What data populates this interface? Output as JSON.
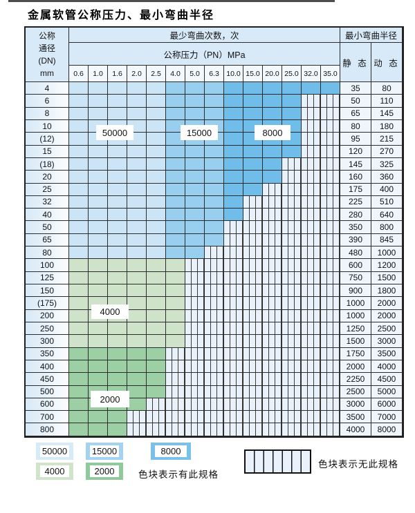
{
  "title": "金属软管公称压力、最小弯曲半径",
  "table": {
    "header": {
      "dn_lines": [
        "公称",
        "通径",
        "(DN)",
        "mm"
      ],
      "bend_cycles": "最少弯曲次数，次",
      "pressure": "公称压力（PN）MPa",
      "radius": "最小弯曲半径",
      "static_label": "静 态",
      "dynamic_label": "动 态",
      "pressures": [
        "0.6",
        "1.0",
        "1.6",
        "2.0",
        "2.5",
        "4.0",
        "5.0",
        "6.3",
        "10.0",
        "15.0",
        "20.0",
        "25.0",
        "32.0",
        "35.0"
      ]
    },
    "band_rule": {
      "blue_cols_50000": [
        1,
        5
      ],
      "blue_cols_15000": [
        6,
        8
      ],
      "blue_cols_8000": [
        9,
        14
      ],
      "green_light_value": "4000",
      "green_dark_value": "2000"
    },
    "rows": [
      {
        "dn": "4",
        "colored": 14,
        "shade": "blue",
        "static": "35",
        "dynamic": "80"
      },
      {
        "dn": "6",
        "colored": 12,
        "shade": "blue",
        "static": "50",
        "dynamic": "110"
      },
      {
        "dn": "8",
        "colored": 12,
        "shade": "blue",
        "static": "65",
        "dynamic": "145"
      },
      {
        "dn": "10",
        "colored": 12,
        "shade": "blue",
        "static": "80",
        "dynamic": "180"
      },
      {
        "dn": "(12)",
        "colored": 12,
        "shade": "blue",
        "static": "95",
        "dynamic": "215"
      },
      {
        "dn": "15",
        "colored": 12,
        "shade": "blue",
        "static": "120",
        "dynamic": "270"
      },
      {
        "dn": "(18)",
        "colored": 11,
        "shade": "blue",
        "static": "145",
        "dynamic": "325"
      },
      {
        "dn": "20",
        "colored": 11,
        "shade": "blue",
        "static": "160",
        "dynamic": "360"
      },
      {
        "dn": "25",
        "colored": 10,
        "shade": "blue",
        "static": "175",
        "dynamic": "400"
      },
      {
        "dn": "32",
        "colored": 9,
        "shade": "blue",
        "static": "225",
        "dynamic": "510"
      },
      {
        "dn": "40",
        "colored": 9,
        "shade": "blue",
        "static": "280",
        "dynamic": "640"
      },
      {
        "dn": "50",
        "colored": 8,
        "shade": "blue",
        "static": "350",
        "dynamic": "800"
      },
      {
        "dn": "65",
        "colored": 8,
        "shade": "blue",
        "static": "390",
        "dynamic": "845"
      },
      {
        "dn": "80",
        "colored": 7,
        "shade": "blue",
        "static": "480",
        "dynamic": "1000"
      },
      {
        "dn": "100",
        "colored": 6,
        "shade": "green_light",
        "static": "600",
        "dynamic": "1200"
      },
      {
        "dn": "125",
        "colored": 6,
        "shade": "green_light",
        "static": "750",
        "dynamic": "1500"
      },
      {
        "dn": "150",
        "colored": 6,
        "shade": "green_light",
        "static": "900",
        "dynamic": "1800"
      },
      {
        "dn": "(175)",
        "colored": 6,
        "shade": "green_light",
        "static": "1000",
        "dynamic": "2000"
      },
      {
        "dn": "200",
        "colored": 6,
        "shade": "green_light",
        "static": "1000",
        "dynamic": "2000"
      },
      {
        "dn": "250",
        "colored": 6,
        "shade": "green_light",
        "static": "1250",
        "dynamic": "2500"
      },
      {
        "dn": "300",
        "colored": 6,
        "shade": "green_light",
        "static": "1500",
        "dynamic": "3000"
      },
      {
        "dn": "350",
        "colored": 5,
        "shade": "green_dark",
        "static": "1750",
        "dynamic": "3500"
      },
      {
        "dn": "400",
        "colored": 5,
        "shade": "green_dark",
        "static": "2000",
        "dynamic": "4000"
      },
      {
        "dn": "450",
        "colored": 5,
        "shade": "green_dark",
        "static": "2250",
        "dynamic": "4500"
      },
      {
        "dn": "500",
        "colored": 5,
        "shade": "green_dark",
        "static": "2500",
        "dynamic": "5000"
      },
      {
        "dn": "600",
        "colored": 4,
        "shade": "green_dark",
        "static": "3000",
        "dynamic": "6000"
      },
      {
        "dn": "700",
        "colored": 3,
        "shade": "green_dark",
        "static": "3500",
        "dynamic": "7000"
      },
      {
        "dn": "800",
        "colored": 3,
        "shade": "green_dark",
        "static": "4000",
        "dynamic": "8000"
      }
    ]
  },
  "spec_labels": {
    "s50000": "50000",
    "s15000": "15000",
    "s8000": "8000",
    "s4000": "4000",
    "s2000": "2000"
  },
  "legend": {
    "has_spec_text": "色块表示有此规格",
    "no_spec_text": "色块表示无此规格"
  },
  "colors": {
    "spec_50000": "#cbe5f6",
    "spec_15000": "#99cfee",
    "spec_8000": "#6fbde8",
    "spec_4000": "#cfe3cb",
    "spec_2000": "#9ccfa3",
    "no_spec_bg": "#e9f2fa",
    "header_bg": "#d8eaf7"
  }
}
